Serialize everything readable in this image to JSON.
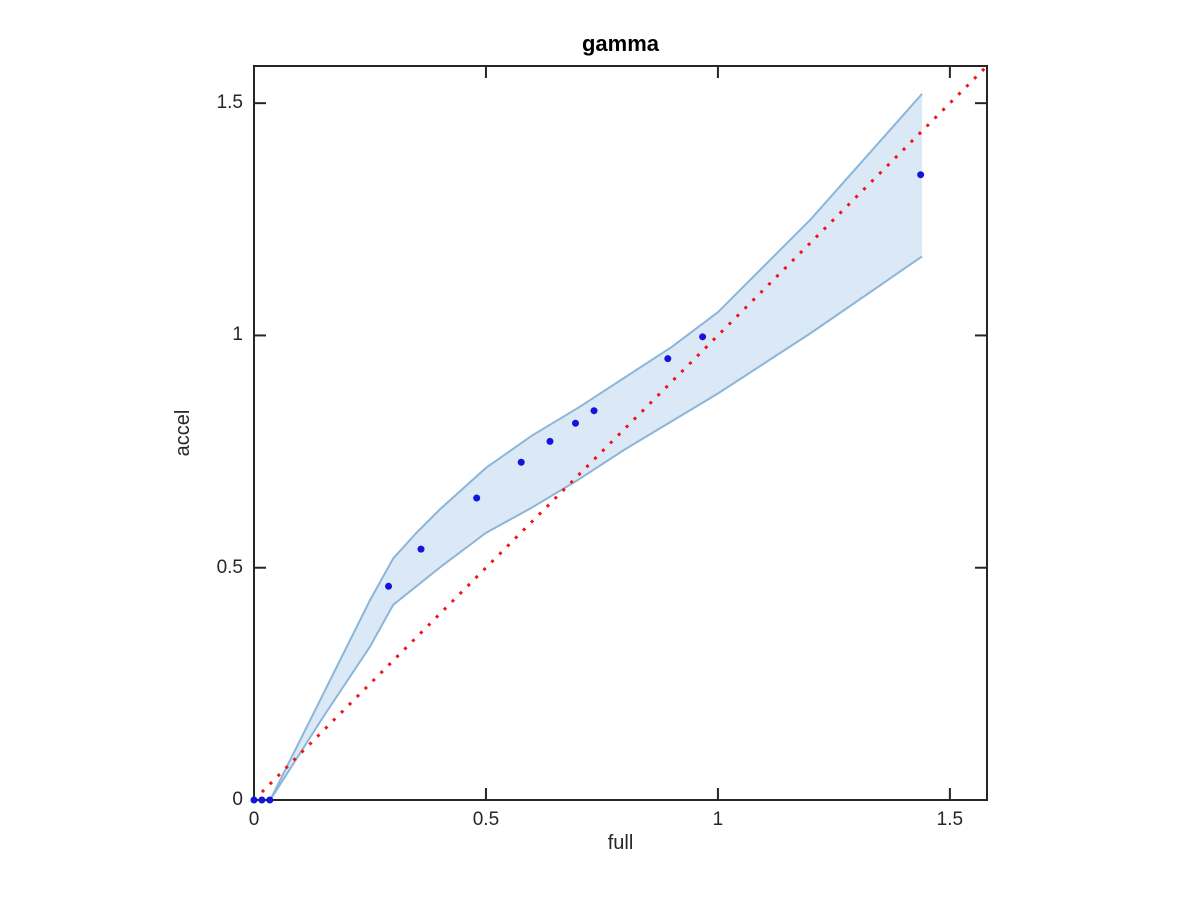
{
  "chart_data": {
    "type": "scatter",
    "title": "gamma",
    "xlabel": "full",
    "ylabel": "accel",
    "xlim": [
      0,
      1.58
    ],
    "ylim": [
      0,
      1.58
    ],
    "xticks": [
      0,
      0.5,
      1,
      1.5
    ],
    "yticks": [
      0,
      0.5,
      1,
      1.5
    ],
    "xtick_labels": [
      "0",
      "0.5",
      "1",
      "1.5"
    ],
    "ytick_labels": [
      "0",
      "0.5",
      "1",
      "1.5"
    ],
    "grid": false,
    "legend": null,
    "axis_color": "#262626",
    "background_color": "#ffffff",
    "series": [
      {
        "name": "confidence-band",
        "type": "band",
        "fill_color": "#dbe8f5",
        "edge_color": "#8ab6da",
        "x": [
          0.035,
          0.15,
          0.25,
          0.3,
          0.35,
          0.4,
          0.5,
          0.6,
          0.7,
          0.8,
          0.9,
          1.0,
          1.2,
          1.44
        ],
        "upper": [
          0.0,
          0.23,
          0.43,
          0.52,
          0.575,
          0.625,
          0.715,
          0.785,
          0.845,
          0.91,
          0.975,
          1.05,
          1.25,
          1.52
        ],
        "lower": [
          0.0,
          0.18,
          0.33,
          0.42,
          0.46,
          0.5,
          0.575,
          0.63,
          0.69,
          0.755,
          0.815,
          0.875,
          1.005,
          1.17
        ]
      },
      {
        "name": "identity-reference-line",
        "type": "line",
        "style": "dotted",
        "color": "#f01414",
        "points": [
          [
            0,
            0
          ],
          [
            1.58,
            1.58
          ]
        ]
      },
      {
        "name": "accel-vs-full-points",
        "type": "scatter",
        "marker": "dot",
        "color": "#1414dd",
        "points": [
          [
            0.0,
            0.0
          ],
          [
            0.017,
            0.0
          ],
          [
            0.034,
            0.0
          ],
          [
            0.29,
            0.46
          ],
          [
            0.36,
            0.54
          ],
          [
            0.48,
            0.65
          ],
          [
            0.576,
            0.727
          ],
          [
            0.638,
            0.772
          ],
          [
            0.693,
            0.811
          ],
          [
            0.733,
            0.838
          ],
          [
            0.892,
            0.95
          ],
          [
            0.967,
            0.997
          ],
          [
            1.437,
            1.346
          ]
        ]
      }
    ]
  }
}
